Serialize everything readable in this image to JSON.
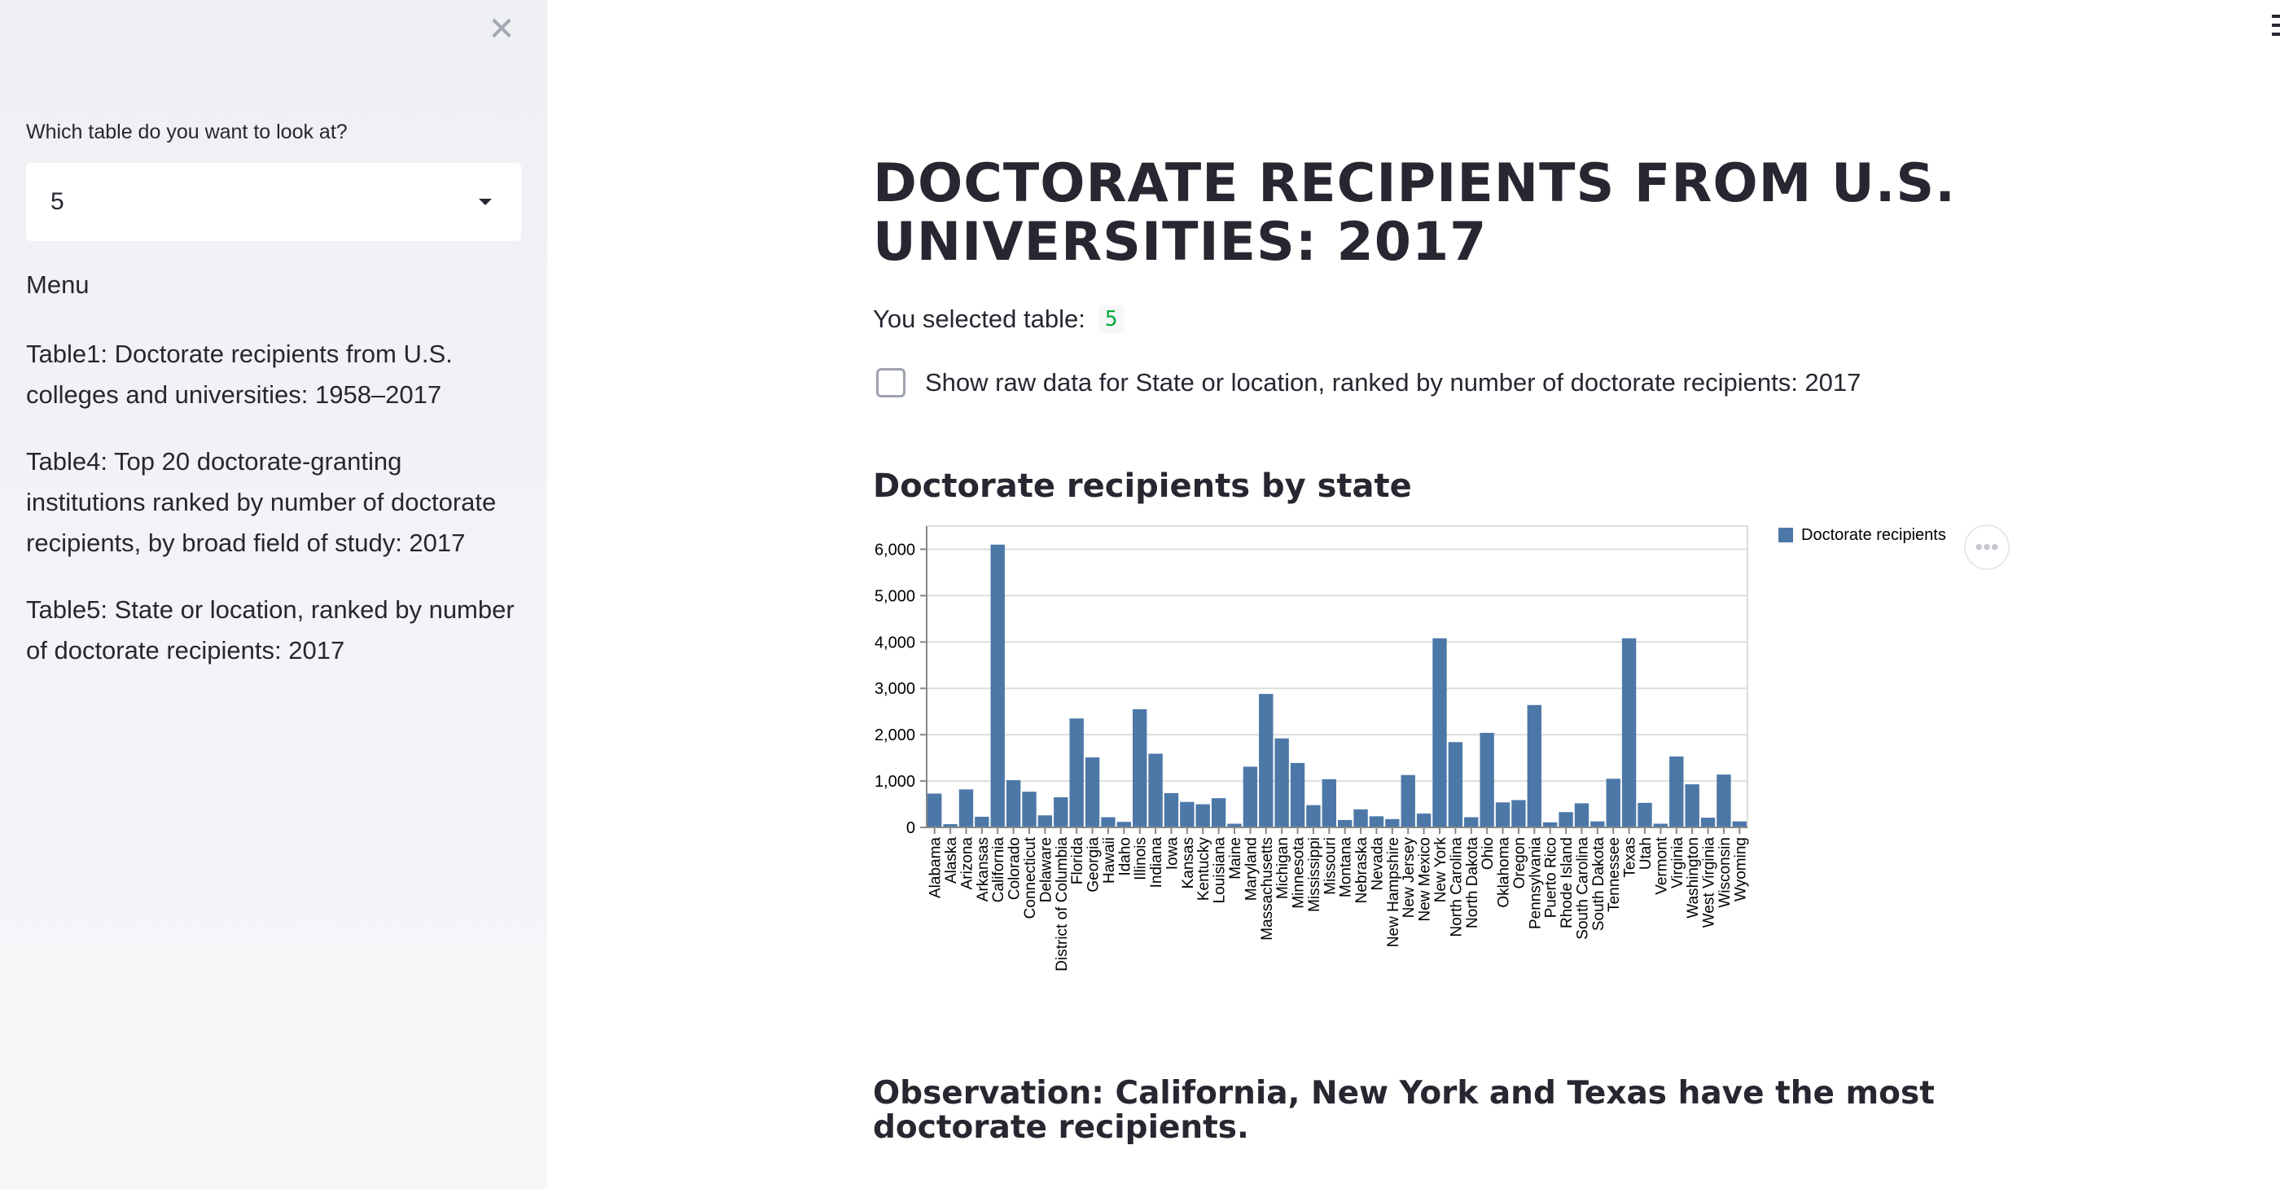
{
  "sidebar": {
    "close_icon": "close-icon",
    "select_label": "Which table do you want to look at?",
    "select_value": "5",
    "menu_title": "Menu",
    "menu_items": [
      {
        "label": "Table1: Doctorate recipients from U.S. colleges and universities: 1958–2017"
      },
      {
        "label": "Table4: Top 20 doctorate-granting institutions ranked by number of doctorate recipients, by broad field of study: 2017"
      },
      {
        "label": "Table5: State or location, ranked by number of doctorate recipients: 2017"
      }
    ]
  },
  "main": {
    "title": "DOCTORATE RECIPIENTS FROM U.S. UNIVERSITIES: 2017",
    "selected_label": "You selected table:",
    "selected_value": "5",
    "raw_checkbox_label": "Show raw data for State or location, ranked by number of doctorate recipients: 2017",
    "raw_checkbox_checked": false,
    "chart_heading": "Doctorate recipients by state",
    "observation": "Observation: California, New York and Texas have the most doctorate recipients."
  },
  "chart_data": {
    "type": "bar",
    "title": "",
    "xlabel": "",
    "ylabel": "",
    "ylim": [
      0,
      6500
    ],
    "yticks": [
      0,
      1000,
      2000,
      3000,
      4000,
      5000,
      6000
    ],
    "ytick_labels": [
      "0",
      "1,000",
      "2,000",
      "3,000",
      "4,000",
      "5,000",
      "6,000"
    ],
    "grid": true,
    "legend": "top-right",
    "color": "#4c78a8",
    "categories": [
      "Alabama",
      "Alaska",
      "Arizona",
      "Arkansas",
      "California",
      "Colorado",
      "Connecticut",
      "Delaware",
      "District of Columbia",
      "Florida",
      "Georgia",
      "Hawaii",
      "Idaho",
      "Illinois",
      "Indiana",
      "Iowa",
      "Kansas",
      "Kentucky",
      "Louisiana",
      "Maine",
      "Maryland",
      "Massachusetts",
      "Michigan",
      "Minnesota",
      "Mississippi",
      "Missouri",
      "Montana",
      "Nebraska",
      "Nevada",
      "New Hampshire",
      "New Jersey",
      "New Mexico",
      "New York",
      "North Carolina",
      "North Dakota",
      "Ohio",
      "Oklahoma",
      "Oregon",
      "Pennsylvania",
      "Puerto Rico",
      "Rhode Island",
      "South Carolina",
      "South Dakota",
      "Tennessee",
      "Texas",
      "Utah",
      "Vermont",
      "Virginia",
      "Washington",
      "West Virginia",
      "Wisconsin",
      "Wyoming"
    ],
    "series": [
      {
        "name": "Doctorate recipients",
        "values": [
          730,
          70,
          820,
          230,
          6100,
          1020,
          770,
          260,
          650,
          2350,
          1510,
          220,
          120,
          2550,
          1590,
          740,
          550,
          500,
          630,
          80,
          1310,
          2880,
          1920,
          1390,
          480,
          1040,
          160,
          390,
          240,
          180,
          1130,
          300,
          4080,
          1840,
          220,
          2040,
          540,
          590,
          2640,
          110,
          330,
          520,
          130,
          1050,
          4080,
          530,
          80,
          1530,
          930,
          210,
          1140,
          130
        ]
      }
    ]
  }
}
